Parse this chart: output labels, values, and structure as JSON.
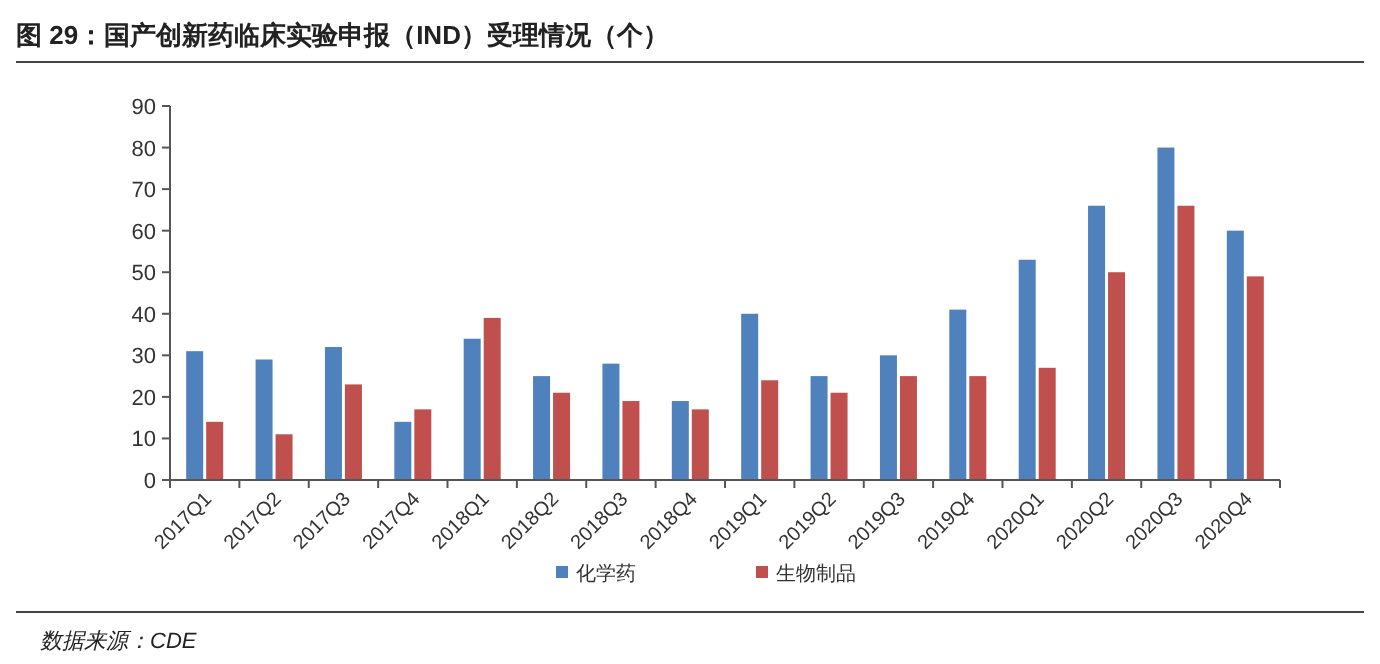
{
  "chart_data": {
    "type": "bar",
    "title": "图 29：国产创新药临床实验申报（IND）受理情况（个）",
    "annotations": [
      "数据来源：CDE"
    ],
    "categories": [
      "2017Q1",
      "2017Q2",
      "2017Q3",
      "2017Q4",
      "2018Q1",
      "2018Q2",
      "2018Q3",
      "2018Q4",
      "2019Q1",
      "2019Q2",
      "2019Q3",
      "2019Q4",
      "2020Q1",
      "2020Q2",
      "2020Q3",
      "2020Q4"
    ],
    "series": [
      {
        "name": "化学药",
        "color": "#4f81bd",
        "values": [
          31,
          29,
          32,
          14,
          34,
          25,
          28,
          19,
          40,
          25,
          30,
          41,
          53,
          66,
          80,
          60
        ]
      },
      {
        "name": "生物制品",
        "color": "#c0504d",
        "values": [
          14,
          11,
          23,
          17,
          39,
          21,
          19,
          17,
          24,
          21,
          25,
          25,
          27,
          50,
          66,
          49
        ]
      }
    ],
    "ylim": [
      0,
      90
    ],
    "yticks": [
      0,
      10,
      20,
      30,
      40,
      50,
      60,
      70,
      80,
      90
    ],
    "legend": "bottom",
    "grid": false
  }
}
